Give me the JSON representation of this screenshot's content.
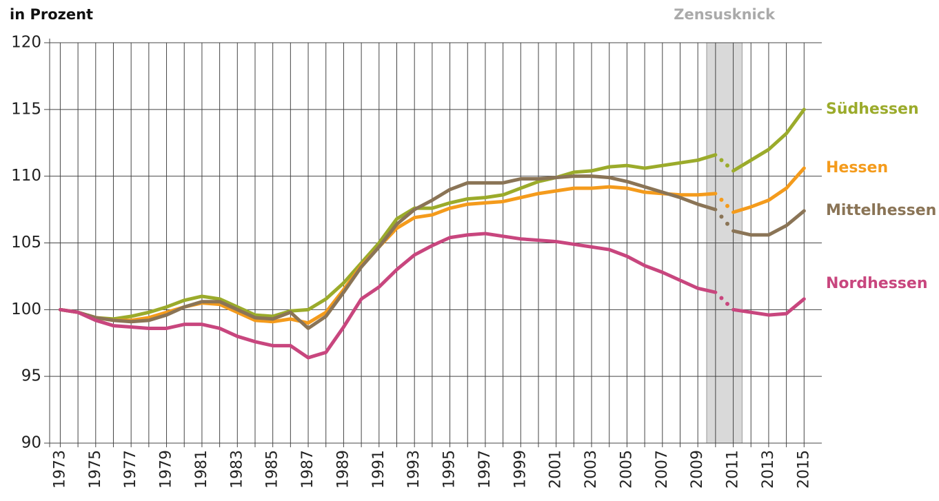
{
  "chart_data": {
    "type": "line",
    "title": "in Prozent",
    "annotation": {
      "label": "Zensusknick",
      "range": [
        2009.5,
        2011.5
      ],
      "color": "#d9d9d9",
      "label_color": "#aaaaaa",
      "gap": [
        2010,
        2011
      ]
    },
    "x": [
      1973,
      1974,
      1975,
      1976,
      1977,
      1978,
      1979,
      1980,
      1981,
      1982,
      1983,
      1984,
      1985,
      1986,
      1987,
      1988,
      1989,
      1990,
      1991,
      1992,
      1993,
      1994,
      1995,
      1996,
      1997,
      1998,
      1999,
      2000,
      2001,
      2002,
      2003,
      2004,
      2005,
      2006,
      2007,
      2008,
      2009,
      2010,
      2011,
      2012,
      2013,
      2014,
      2015
    ],
    "xlim": [
      1972.4,
      2016
    ],
    "xticks": [
      1973,
      1975,
      1977,
      1979,
      1981,
      1983,
      1985,
      1987,
      1989,
      1991,
      1993,
      1995,
      1997,
      1999,
      2001,
      2003,
      2005,
      2007,
      2009,
      2011,
      2013,
      2015
    ],
    "xminorticks": [
      1974,
      1976,
      1978,
      1980,
      1982,
      1984,
      1986,
      1988,
      1990,
      1992,
      1994,
      1996,
      1998,
      2000,
      2002,
      2004,
      2006,
      2008,
      2010,
      2012,
      2014
    ],
    "ylim": [
      90,
      120
    ],
    "yticks": [
      90,
      95,
      100,
      105,
      110,
      115,
      120
    ],
    "grid": true,
    "series": [
      {
        "name": "Südhessen",
        "color": "#9bab2b",
        "values": [
          100,
          99.8,
          99.4,
          99.3,
          99.5,
          99.8,
          100.2,
          100.7,
          101.0,
          100.8,
          100.2,
          99.6,
          99.5,
          99.9,
          100.0,
          100.8,
          102.0,
          103.5,
          105.0,
          106.8,
          107.6,
          107.6,
          108.0,
          108.3,
          108.4,
          108.6,
          109.1,
          109.6,
          109.9,
          110.3,
          110.4,
          110.7,
          110.8,
          110.6,
          110.8,
          111.0,
          111.2,
          111.6,
          110.4,
          111.2,
          112.0,
          113.2,
          115.0
        ]
      },
      {
        "name": "Hessen",
        "color": "#f49b1c",
        "values": [
          100,
          99.8,
          99.4,
          99.2,
          99.2,
          99.4,
          99.8,
          100.2,
          100.5,
          100.4,
          99.8,
          99.2,
          99.1,
          99.3,
          99.0,
          99.8,
          101.5,
          103.3,
          104.7,
          106.1,
          106.9,
          107.1,
          107.6,
          107.9,
          108.0,
          108.1,
          108.4,
          108.7,
          108.9,
          109.1,
          109.1,
          109.2,
          109.1,
          108.8,
          108.7,
          108.6,
          108.6,
          108.7,
          107.3,
          107.7,
          108.2,
          109.1,
          110.6
        ]
      },
      {
        "name": "Mittelhessen",
        "color": "#8a7456",
        "values": [
          100,
          99.8,
          99.4,
          99.2,
          99.1,
          99.2,
          99.6,
          100.2,
          100.6,
          100.6,
          100.0,
          99.4,
          99.3,
          99.8,
          98.6,
          99.5,
          101.3,
          103.2,
          104.7,
          106.4,
          107.5,
          108.2,
          109.0,
          109.5,
          109.5,
          109.5,
          109.8,
          109.8,
          109.9,
          110.0,
          110.0,
          109.9,
          109.6,
          109.2,
          108.8,
          108.4,
          107.9,
          107.5,
          105.9,
          105.6,
          105.6,
          106.3,
          107.4
        ]
      },
      {
        "name": "Nordhessen",
        "color": "#c8467e",
        "values": [
          100,
          99.8,
          99.2,
          98.8,
          98.7,
          98.6,
          98.6,
          98.9,
          98.9,
          98.6,
          98.0,
          97.6,
          97.3,
          97.3,
          96.4,
          96.8,
          98.7,
          100.8,
          101.7,
          103.0,
          104.1,
          104.8,
          105.4,
          105.6,
          105.7,
          105.5,
          105.3,
          105.2,
          105.1,
          104.9,
          104.7,
          104.5,
          104.0,
          103.3,
          102.8,
          102.2,
          101.6,
          101.3,
          100.0,
          99.8,
          99.6,
          99.7,
          100.8
        ]
      }
    ]
  }
}
